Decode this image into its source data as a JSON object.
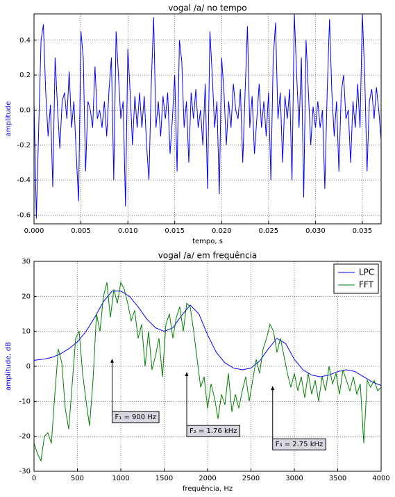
{
  "chart_data": [
    {
      "type": "line",
      "title": "vogal /a/ no tempo",
      "xlabel": "tempo, s",
      "ylabel": "amplitude",
      "ylabel_color": "#0000ff",
      "grid": true,
      "xlim": [
        0,
        0.037
      ],
      "ylim": [
        -0.65,
        0.55
      ],
      "xticks": [
        {
          "value": 0,
          "label": "0.000"
        },
        {
          "value": 0.005,
          "label": "0.005"
        },
        {
          "value": 0.01,
          "label": "0.010"
        },
        {
          "value": 0.015,
          "label": "0.015"
        },
        {
          "value": 0.02,
          "label": "0.020"
        },
        {
          "value": 0.025,
          "label": "0.025"
        },
        {
          "value": 0.03,
          "label": "0.030"
        },
        {
          "value": 0.035,
          "label": "0.035"
        }
      ],
      "yticks": [
        -0.6,
        -0.4,
        -0.2,
        {
          "value": 0,
          "label": "0.0"
        },
        0.2,
        0.4
      ],
      "series": [
        {
          "color": "#0000ff",
          "x": [
            0,
            0.00025,
            0.0005,
            0.00075,
            0.001,
            0.00125,
            0.0015,
            0.00175,
            0.002,
            0.00225,
            0.0025,
            0.00275,
            0.003,
            0.00325,
            0.0035,
            0.00375,
            0.004,
            0.00425,
            0.0045,
            0.00475,
            0.005,
            0.00525,
            0.0055,
            0.00575,
            0.006,
            0.00625,
            0.0065,
            0.00675,
            0.007,
            0.00725,
            0.0075,
            0.00775,
            0.008,
            0.00825,
            0.0085,
            0.00875,
            0.009,
            0.00925,
            0.0095,
            0.00975,
            0.01,
            0.01025,
            0.0105,
            0.01075,
            0.011,
            0.01125,
            0.0115,
            0.01175,
            0.012,
            0.01225,
            0.0125,
            0.01275,
            0.013,
            0.01325,
            0.0135,
            0.01375,
            0.014,
            0.01425,
            0.0145,
            0.01475,
            0.015,
            0.01525,
            0.0155,
            0.01575,
            0.016,
            0.01625,
            0.0165,
            0.01675,
            0.017,
            0.01725,
            0.0175,
            0.01775,
            0.018,
            0.01825,
            0.0185,
            0.01875,
            0.019,
            0.01925,
            0.0195,
            0.01975,
            0.02,
            0.02025,
            0.0205,
            0.02075,
            0.021,
            0.02125,
            0.0215,
            0.02175,
            0.022,
            0.02225,
            0.0225,
            0.02275,
            0.023,
            0.02325,
            0.0235,
            0.02375,
            0.024,
            0.02425,
            0.0245,
            0.02475,
            0.025,
            0.02525,
            0.0255,
            0.02575,
            0.026,
            0.02625,
            0.0265,
            0.02675,
            0.027,
            0.02725,
            0.0275,
            0.02775,
            0.028,
            0.02825,
            0.0285,
            0.02875,
            0.029,
            0.02925,
            0.0295,
            0.02975,
            0.03,
            0.03025,
            0.0305,
            0.03075,
            0.031,
            0.03125,
            0.0315,
            0.03175,
            0.032,
            0.03225,
            0.0325,
            0.03275,
            0.033,
            0.03325,
            0.0335,
            0.03375,
            0.034,
            0.03425,
            0.0345,
            0.03475,
            0.035,
            0.03525,
            0.0355,
            0.03575,
            0.036,
            0.03625,
            0.0365,
            0.03675,
            0.037
          ],
          "values": [
            0.05,
            -0.62,
            -0.1,
            0.4,
            0.49,
            0.1,
            -0.15,
            0.03,
            -0.44,
            0.3,
            0.02,
            -0.22,
            0.05,
            0.1,
            -0.05,
            0.22,
            -0.1,
            0.05,
            -0.25,
            -0.52,
            0.45,
            0.3,
            -0.35,
            0.05,
            0.0,
            -0.1,
            0.25,
            -0.05,
            0.0,
            -0.1,
            0.05,
            -0.15,
            0.12,
            0.3,
            -0.4,
            0.45,
            0.2,
            -0.05,
            0.05,
            -0.55,
            0.35,
            0.1,
            -0.2,
            0.08,
            -0.1,
            0.1,
            -0.1,
            0.08,
            -0.2,
            -0.4,
            0.15,
            0.53,
            -0.1,
            0.05,
            -0.15,
            0.08,
            -0.05,
            0.1,
            -0.25,
            -0.05,
            0.2,
            -0.35,
            0.4,
            0.28,
            -0.1,
            0.05,
            -0.3,
            0.1,
            -0.05,
            0.12,
            -0.1,
            0.0,
            -0.2,
            0.15,
            -0.45,
            0.45,
            0.2,
            -0.1,
            0.05,
            -0.48,
            0.3,
            0.1,
            -0.2,
            0.05,
            -0.1,
            0.15,
            0.0,
            -0.05,
            0.12,
            -0.3,
            0.1,
            0.48,
            -0.1,
            0.08,
            -0.25,
            -0.05,
            0.15,
            -0.1,
            0.05,
            -0.15,
            0.1,
            -0.4,
            0.3,
            0.5,
            -0.05,
            0.1,
            -0.3,
            0.08,
            -0.05,
            0.12,
            -0.4,
            0.55,
            0.2,
            -0.1,
            0.3,
            -0.5,
            0.4,
            0.1,
            -0.2,
            0.02,
            -0.1,
            0.05,
            -0.1,
            0.0,
            -0.45,
            0.1,
            0.52,
            0.1,
            -0.15,
            0.05,
            -0.35,
            0.1,
            0.2,
            -0.05,
            0.0,
            -0.3,
            0.05,
            -0.1,
            0.15,
            -0.1,
            0.55,
            0.2,
            -0.35,
            0.05,
            0.12,
            -0.05,
            0.13,
            0.0,
            -0.17
          ]
        }
      ]
    },
    {
      "type": "line",
      "title": "vogal /a/ em frequência",
      "xlabel": "frequência, Hz",
      "ylabel": "amplitude, dB",
      "ylabel_color": "#0000ff",
      "grid": true,
      "legend": "upper right",
      "xlim": [
        0,
        4000
      ],
      "ylim": [
        -30,
        30
      ],
      "xticks": [
        0,
        500,
        1000,
        1500,
        2000,
        2500,
        3000,
        3500,
        4000
      ],
      "yticks": [
        -30,
        -20,
        -10,
        0,
        10,
        20,
        30
      ],
      "series": [
        {
          "name": "LPC",
          "color": "#0000ff",
          "x": [
            0,
            100,
            200,
            300,
            400,
            500,
            600,
            700,
            800,
            900,
            1000,
            1100,
            1200,
            1300,
            1400,
            1500,
            1600,
            1700,
            1800,
            1900,
            2000,
            2100,
            2200,
            2300,
            2400,
            2500,
            2600,
            2700,
            2800,
            2900,
            3000,
            3100,
            3200,
            3300,
            3400,
            3500,
            3600,
            3700,
            3800,
            3900,
            4000
          ],
          "values": [
            1.7,
            2,
            2.5,
            3.5,
            5,
            7,
            10,
            14,
            18.5,
            21.5,
            21.5,
            20,
            17,
            13.5,
            11,
            10,
            11,
            14.5,
            17.5,
            15,
            9,
            4,
            1,
            -0.5,
            -1,
            -0.5,
            1.5,
            5,
            8,
            6.5,
            2,
            -1,
            -2.5,
            -3,
            -2.5,
            -1.5,
            -1,
            -1.5,
            -3,
            -4.5,
            -5.5
          ]
        },
        {
          "name": "FFT",
          "color": "#008000",
          "x": [
            0,
            40,
            80,
            120,
            160,
            200,
            240,
            280,
            320,
            360,
            400,
            440,
            480,
            520,
            560,
            600,
            640,
            680,
            720,
            760,
            800,
            840,
            880,
            920,
            960,
            1000,
            1040,
            1080,
            1120,
            1160,
            1200,
            1240,
            1280,
            1320,
            1360,
            1400,
            1440,
            1480,
            1520,
            1560,
            1600,
            1640,
            1680,
            1720,
            1760,
            1800,
            1840,
            1880,
            1920,
            1960,
            2000,
            2040,
            2080,
            2120,
            2160,
            2200,
            2240,
            2280,
            2320,
            2360,
            2400,
            2440,
            2480,
            2520,
            2560,
            2600,
            2640,
            2680,
            2720,
            2760,
            2800,
            2840,
            2880,
            2920,
            2960,
            3000,
            3040,
            3080,
            3120,
            3160,
            3200,
            3240,
            3280,
            3320,
            3360,
            3400,
            3440,
            3480,
            3520,
            3560,
            3600,
            3640,
            3680,
            3720,
            3760,
            3800,
            3840,
            3880,
            3920,
            3960,
            4000
          ],
          "values": [
            -22,
            -25,
            -27,
            -20,
            -19,
            -22,
            -8,
            5,
            1,
            -12,
            -18,
            -5,
            8,
            10,
            -2,
            -10,
            -17,
            -4,
            15,
            10,
            20,
            24,
            14,
            22,
            18,
            24,
            22,
            18,
            13,
            16,
            8,
            12,
            0,
            10,
            -1,
            3,
            8,
            -3,
            12,
            15,
            8,
            14,
            17,
            10,
            18,
            17,
            10,
            2,
            -6,
            -3,
            -12,
            -5,
            -9,
            -15,
            -8,
            -11,
            -2,
            -13,
            -8,
            -12,
            -7,
            -3,
            -10,
            -4,
            2,
            -2,
            5,
            8,
            12,
            10,
            4,
            8,
            3,
            -2,
            -6,
            -2,
            -7,
            -3,
            -9,
            -2,
            -8,
            -4,
            -10,
            -3,
            -7,
            0,
            -5,
            -2,
            -8,
            -1,
            -4,
            -7,
            -3,
            -8,
            -5,
            -22,
            -4,
            -6,
            -4,
            -7,
            -6
          ]
        }
      ],
      "annotations": [
        {
          "text": "F₁ = 900 Hz",
          "xy": [
            900,
            2.2
          ],
          "xytext": [
            900,
            -14.5
          ]
        },
        {
          "text": "F₂ = 1.76 kHz",
          "xy": [
            1760,
            -1.6
          ],
          "xytext": [
            1760,
            -18.5
          ]
        },
        {
          "text": "F₃ = 2.75 kHz",
          "xy": [
            2750,
            -5.6
          ],
          "xytext": [
            2750,
            -22.3
          ]
        }
      ]
    }
  ]
}
